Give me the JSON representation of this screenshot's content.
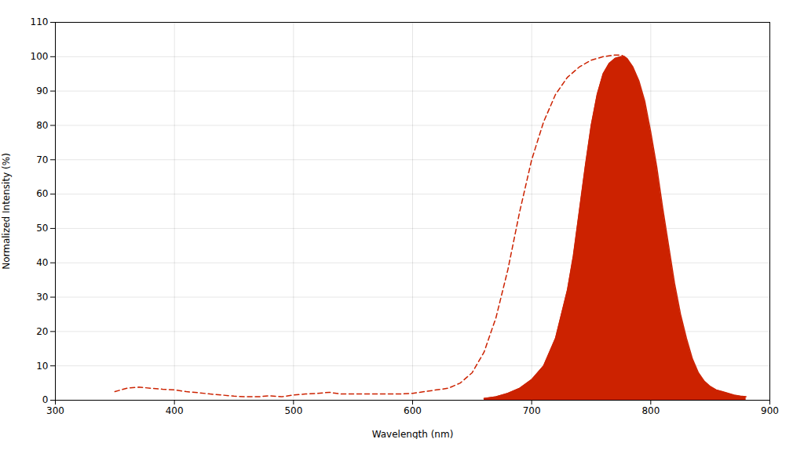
{
  "chart_data": {
    "type": "line",
    "xlabel": "Wavelength (nm)",
    "ylabel": "Normalized Intensity (%)",
    "xlim": [
      300,
      900
    ],
    "ylim": [
      0,
      110
    ],
    "xticks": [
      300,
      400,
      500,
      600,
      700,
      800,
      900
    ],
    "yticks": [
      0,
      10,
      20,
      30,
      40,
      50,
      60,
      70,
      80,
      90,
      100,
      110
    ],
    "grid": true,
    "series": [
      {
        "type": "line",
        "color": "#cc2200",
        "line_style": "dashed",
        "x": [
          350,
          360,
          370,
          380,
          390,
          400,
          410,
          420,
          430,
          440,
          450,
          460,
          470,
          480,
          490,
          500,
          510,
          520,
          530,
          540,
          550,
          560,
          570,
          580,
          590,
          600,
          610,
          620,
          630,
          640,
          650,
          660,
          670,
          680,
          690,
          700,
          710,
          720,
          730,
          740,
          750,
          760,
          770,
          775,
          778
        ],
        "values": [
          2.5,
          3.5,
          3.8,
          3.5,
          3.2,
          3.0,
          2.5,
          2.2,
          1.8,
          1.5,
          1.2,
          1.0,
          1.0,
          1.3,
          1.0,
          1.5,
          1.8,
          2.0,
          2.3,
          1.8,
          1.8,
          1.8,
          1.8,
          1.8,
          1.8,
          2.0,
          2.5,
          3.0,
          3.5,
          5.0,
          8.0,
          14.0,
          24.0,
          38.0,
          55.0,
          70.0,
          81.0,
          89.0,
          94.0,
          97.0,
          99.0,
          100.0,
          100.5,
          100.5,
          100.0
        ]
      },
      {
        "type": "area",
        "color": "#cc2200",
        "line_style": "solid",
        "x": [
          660,
          670,
          680,
          690,
          700,
          710,
          720,
          730,
          735,
          740,
          745,
          750,
          755,
          760,
          765,
          770,
          775,
          778,
          780,
          785,
          790,
          795,
          800,
          805,
          810,
          815,
          820,
          825,
          830,
          835,
          840,
          845,
          850,
          855,
          860,
          865,
          870,
          875,
          880
        ],
        "values": [
          0.5,
          1.0,
          2.0,
          3.5,
          6.0,
          10.0,
          18.0,
          32.0,
          42.0,
          55.0,
          68.0,
          80.0,
          89.0,
          95.0,
          98.0,
          99.5,
          100.0,
          100.0,
          99.5,
          97.0,
          93.0,
          87.0,
          78.0,
          68.0,
          56.0,
          45.0,
          34.0,
          25.0,
          18.0,
          12.0,
          8.0,
          5.5,
          4.0,
          3.0,
          2.5,
          2.0,
          1.5,
          1.2,
          1.0
        ]
      }
    ]
  }
}
